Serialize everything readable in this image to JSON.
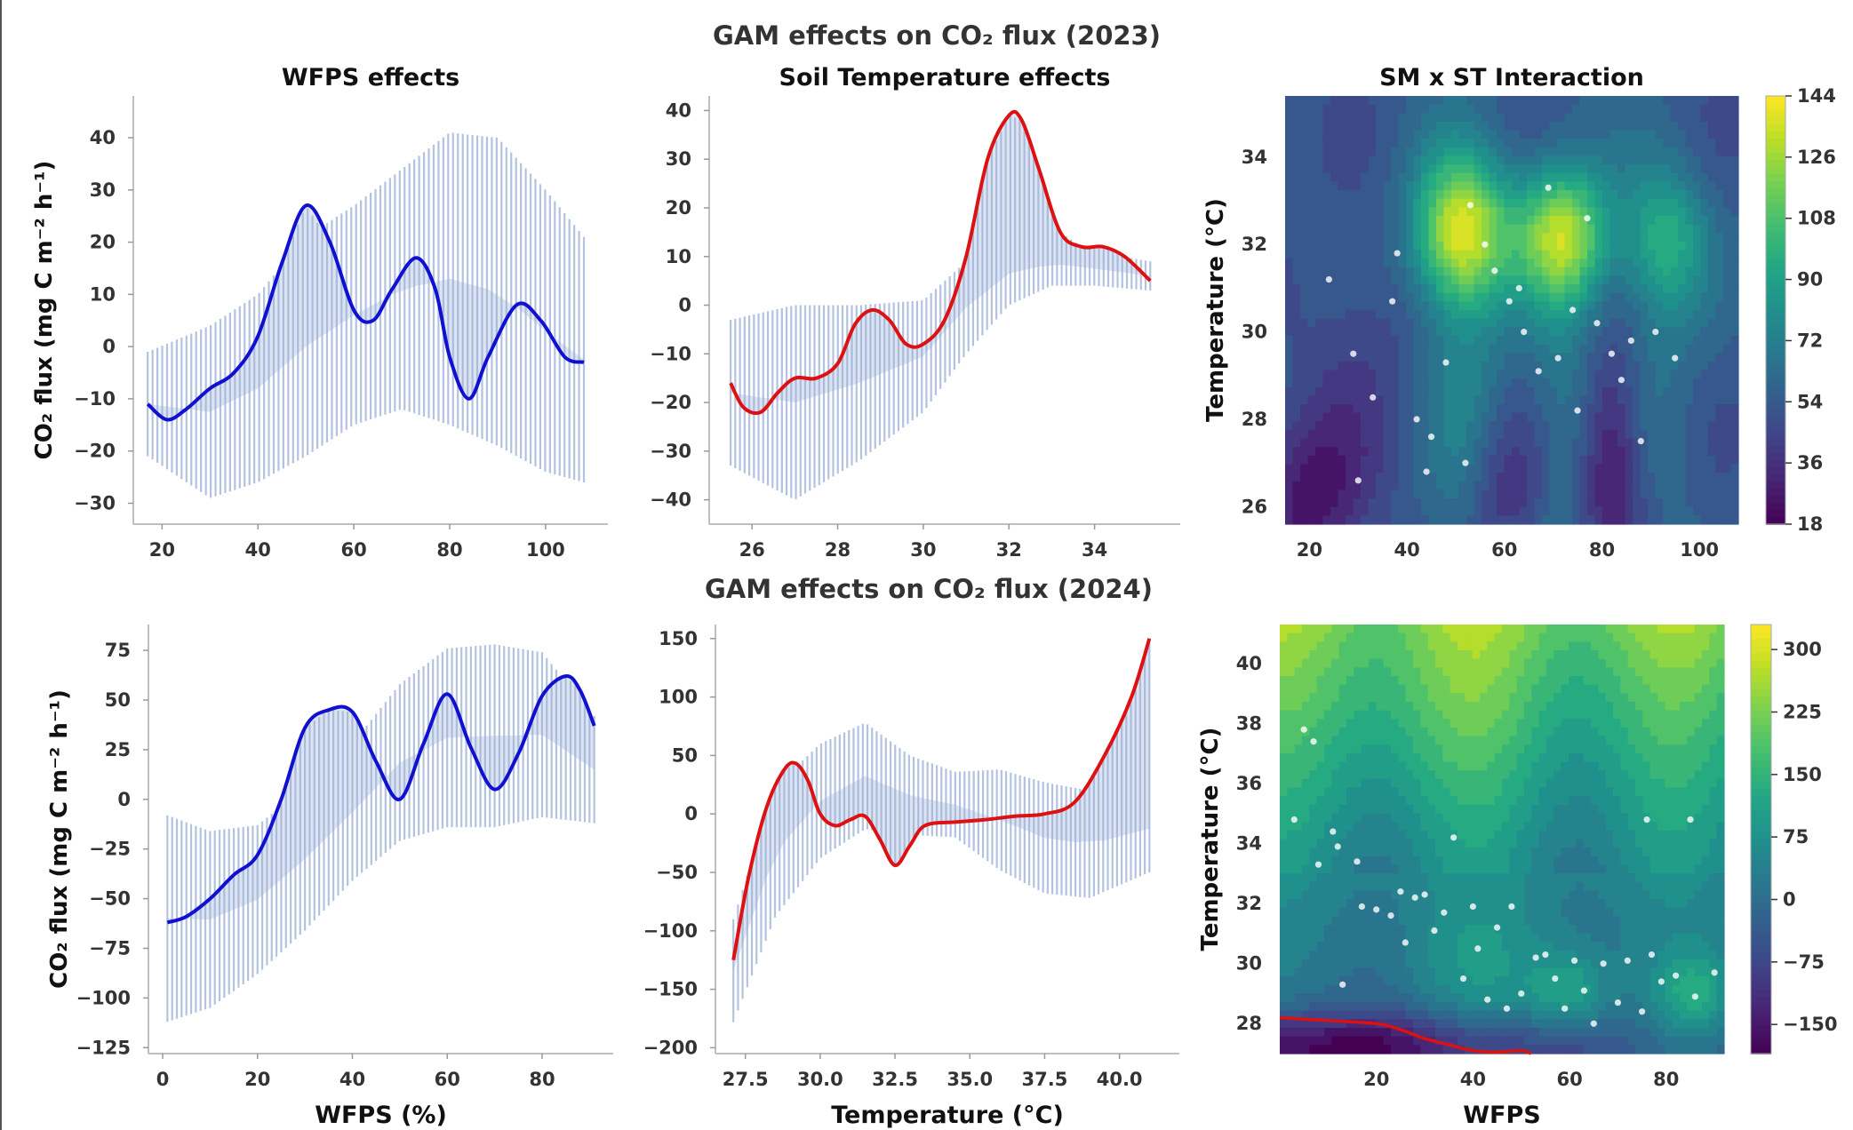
{
  "figure": {
    "title_2023": "GAM effects on CO₂ flux (2023)",
    "title_2024": "GAM effects on CO₂ flux (2024)"
  },
  "colors": {
    "wfps_line": "#1010d0",
    "temp_line": "#dd1111",
    "band_fill": "#9aaed6",
    "axis": "#bfbfbf",
    "contour_line": "#dd1111"
  },
  "chart_data": [
    {
      "id": "wfps_2023",
      "type": "line",
      "title": "WFPS effects",
      "xlabel": "",
      "ylabel": "CO₂ flux (mg C m⁻² h⁻¹)",
      "xlim": [
        14,
        113
      ],
      "ylim": [
        -34,
        48
      ],
      "xticks": [
        20,
        40,
        60,
        80,
        100
      ],
      "yticks": [
        -30,
        -20,
        -10,
        0,
        10,
        20,
        30,
        40
      ],
      "grid": false,
      "series": [
        {
          "x": [
            17,
            21,
            25,
            30,
            35,
            40,
            45,
            50,
            55,
            60,
            64,
            68,
            73,
            77,
            80,
            84,
            88,
            94,
            99,
            104,
            108
          ],
          "values": [
            -11,
            -14,
            -12,
            -8,
            -5,
            2,
            16,
            27,
            20,
            7,
            5,
            11,
            17,
            11,
            -2,
            -10,
            -2,
            8,
            5,
            -2,
            -3
          ]
        }
      ],
      "band": {
        "x": [
          17,
          30,
          40,
          50,
          60,
          70,
          80,
          90,
          100,
          108
        ],
        "upper": [
          -1,
          4,
          10,
          21,
          27,
          34,
          41,
          40,
          30,
          21
        ],
        "lower": [
          -21,
          -29,
          -26,
          -21,
          -15,
          -12,
          -15,
          -19,
          -24,
          -26
        ]
      }
    },
    {
      "id": "temp_2023",
      "type": "line",
      "title": "Soil Temperature effects",
      "xlabel": "",
      "ylabel": "",
      "xlim": [
        25,
        36
      ],
      "ylim": [
        -45,
        43
      ],
      "xticks": [
        26,
        28,
        30,
        32,
        34
      ],
      "yticks": [
        -40,
        -30,
        -20,
        -10,
        0,
        10,
        20,
        30,
        40
      ],
      "grid": false,
      "series": [
        {
          "x": [
            25.5,
            25.8,
            26.2,
            26.6,
            27.0,
            27.5,
            28.0,
            28.4,
            28.8,
            29.2,
            29.6,
            30.0,
            30.5,
            31.0,
            31.5,
            32.0,
            32.3,
            32.7,
            33.2,
            33.7,
            34.2,
            34.7,
            35.3
          ],
          "values": [
            -16,
            -21,
            -22,
            -18,
            -15,
            -15,
            -12,
            -4,
            -1,
            -3,
            -8,
            -8,
            -3,
            10,
            30,
            39,
            38,
            28,
            15,
            12,
            12,
            10,
            5
          ]
        }
      ],
      "band": {
        "x": [
          25.5,
          27,
          28.5,
          30,
          31,
          32,
          33,
          34,
          35.3
        ],
        "upper": [
          -3,
          0,
          0,
          1,
          9,
          13,
          13,
          11,
          9
        ],
        "lower": [
          -33,
          -40,
          -32,
          -22,
          -10,
          0,
          4,
          4,
          3
        ]
      }
    },
    {
      "id": "interaction_2023",
      "type": "heatmap",
      "title": "SM x ST Interaction",
      "xlabel": "",
      "ylabel": "Temperature (°C)",
      "xlim": [
        15,
        108
      ],
      "ylim": [
        25.6,
        35.4
      ],
      "xticks": [
        20,
        40,
        60,
        80,
        100
      ],
      "yticks": [
        26,
        28,
        30,
        32,
        34
      ],
      "colorbar_ticks": [
        18,
        36,
        54,
        72,
        90,
        108,
        126,
        144
      ],
      "colorbar_range": [
        18,
        144
      ],
      "colormap": "viridis",
      "points": [
        [
          37,
          30.7
        ],
        [
          42,
          28.0
        ],
        [
          45,
          27.6
        ],
        [
          48,
          29.3
        ],
        [
          52,
          27.0
        ],
        [
          58,
          31.4
        ],
        [
          61,
          30.7
        ],
        [
          63,
          31.0
        ],
        [
          67,
          29.1
        ],
        [
          71,
          29.4
        ],
        [
          74,
          30.5
        ],
        [
          75,
          28.2
        ],
        [
          79,
          30.2
        ],
        [
          82,
          29.5
        ],
        [
          84,
          28.9
        ],
        [
          86,
          29.8
        ],
        [
          88,
          27.5
        ],
        [
          91,
          30.0
        ],
        [
          30,
          26.6
        ],
        [
          44,
          26.8
        ],
        [
          53,
          32.9
        ],
        [
          38,
          31.8
        ],
        [
          64,
          30.0
        ],
        [
          77,
          32.6
        ],
        [
          95,
          29.4
        ],
        [
          33,
          28.5
        ],
        [
          69,
          33.3
        ],
        [
          56,
          32.0
        ],
        [
          24,
          31.2
        ],
        [
          29,
          29.5
        ]
      ]
    },
    {
      "id": "wfps_2024",
      "type": "line",
      "title": "",
      "xlabel": "WFPS (%)",
      "ylabel": "CO₂ flux (mg C m⁻² h⁻¹)",
      "xlim": [
        -3,
        95
      ],
      "ylim": [
        -128,
        88
      ],
      "xticks": [
        0,
        20,
        40,
        60,
        80
      ],
      "yticks": [
        -125,
        -100,
        -75,
        -50,
        -25,
        0,
        25,
        50,
        75
      ],
      "grid": false,
      "series": [
        {
          "x": [
            1,
            5,
            10,
            15,
            20,
            25,
            30,
            35,
            40,
            45,
            50,
            55,
            60,
            65,
            70,
            75,
            80,
            85,
            88,
            91
          ],
          "values": [
            -62,
            -59,
            -50,
            -38,
            -28,
            0,
            36,
            45,
            44,
            19,
            0,
            28,
            53,
            26,
            5,
            23,
            52,
            62,
            55,
            37
          ]
        }
      ],
      "band": {
        "x": [
          1,
          10,
          20,
          30,
          40,
          50,
          60,
          70,
          80,
          91
        ],
        "upper": [
          -8,
          -16,
          -13,
          6,
          28,
          58,
          76,
          78,
          74,
          42
        ],
        "lower": [
          -112,
          -105,
          -88,
          -66,
          -41,
          -21,
          -14,
          -14,
          -9,
          -12
        ]
      }
    },
    {
      "id": "temp_2024",
      "type": "line",
      "title": "",
      "xlabel": "Temperature (°C)",
      "ylabel": "",
      "xlim": [
        26.5,
        42
      ],
      "ylim": [
        -205,
        162
      ],
      "xticks": [
        27.5,
        30.0,
        32.5,
        35.0,
        37.5,
        40.0
      ],
      "yticks": [
        -200,
        -150,
        -100,
        -50,
        0,
        50,
        100,
        150
      ],
      "grid": false,
      "series": [
        {
          "x": [
            27.1,
            27.6,
            28.2,
            28.8,
            29.2,
            29.6,
            30.0,
            30.5,
            31.0,
            31.5,
            32.0,
            32.5,
            33.0,
            33.5,
            34.5,
            35.5,
            36.5,
            37.5,
            38.5,
            39.5,
            40.4,
            41.0
          ],
          "values": [
            -125,
            -55,
            5,
            38,
            43,
            28,
            0,
            -10,
            -5,
            -2,
            -22,
            -44,
            -27,
            -10,
            -7,
            -5,
            -2,
            0,
            10,
            50,
            100,
            150
          ]
        }
      ],
      "band": {
        "x": [
          27.1,
          28.5,
          30,
          31.5,
          33,
          34.5,
          36,
          37.5,
          39,
          41
        ],
        "upper": [
          -90,
          23,
          60,
          78,
          50,
          36,
          38,
          27,
          20,
          25
        ],
        "lower": [
          -178,
          -88,
          -38,
          -13,
          -18,
          -20,
          -48,
          -68,
          -72,
          -50
        ]
      }
    },
    {
      "id": "interaction_2024",
      "type": "heatmap",
      "title": "",
      "xlabel": "WFPS",
      "ylabel": "Temperature (°C)",
      "xlim": [
        0,
        92
      ],
      "ylim": [
        27,
        41.3
      ],
      "xticks": [
        20,
        40,
        60,
        80
      ],
      "yticks": [
        28,
        30,
        32,
        34,
        36,
        38,
        40
      ],
      "colorbar_ticks": [
        -150,
        -75,
        0,
        75,
        150,
        225,
        300
      ],
      "colorbar_range": [
        -185,
        330
      ],
      "colormap": "viridis",
      "points": [
        [
          3,
          34.8
        ],
        [
          5,
          37.8
        ],
        [
          7,
          37.4
        ],
        [
          8,
          33.3
        ],
        [
          11,
          34.4
        ],
        [
          12,
          33.9
        ],
        [
          13,
          29.3
        ],
        [
          16,
          33.4
        ],
        [
          20,
          31.8
        ],
        [
          23,
          31.6
        ],
        [
          25,
          32.4
        ],
        [
          26,
          30.7
        ],
        [
          28,
          32.2
        ],
        [
          30,
          32.3
        ],
        [
          32,
          31.1
        ],
        [
          34,
          31.7
        ],
        [
          36,
          34.2
        ],
        [
          38,
          29.5
        ],
        [
          40,
          31.9
        ],
        [
          41,
          30.5
        ],
        [
          43,
          28.8
        ],
        [
          45,
          31.2
        ],
        [
          47,
          28.5
        ],
        [
          48,
          31.9
        ],
        [
          50,
          29.0
        ],
        [
          53,
          30.2
        ],
        [
          55,
          30.3
        ],
        [
          57,
          29.5
        ],
        [
          59,
          28.5
        ],
        [
          61,
          30.1
        ],
        [
          63,
          29.1
        ],
        [
          65,
          28.0
        ],
        [
          67,
          30.0
        ],
        [
          70,
          28.7
        ],
        [
          72,
          30.1
        ],
        [
          75,
          28.4
        ],
        [
          77,
          30.3
        ],
        [
          79,
          29.4
        ],
        [
          82,
          29.6
        ],
        [
          85,
          34.8
        ],
        [
          86,
          28.9
        ],
        [
          90,
          29.7
        ],
        [
          76,
          34.8
        ],
        [
          17,
          31.9
        ]
      ],
      "contour": {
        "x": [
          0,
          10,
          20,
          25,
          30,
          35,
          40,
          45,
          50,
          52
        ],
        "values": [
          28.2,
          28.1,
          28.0,
          27.8,
          27.5,
          27.3,
          27.1,
          27.05,
          27.1,
          27.0
        ]
      }
    }
  ]
}
